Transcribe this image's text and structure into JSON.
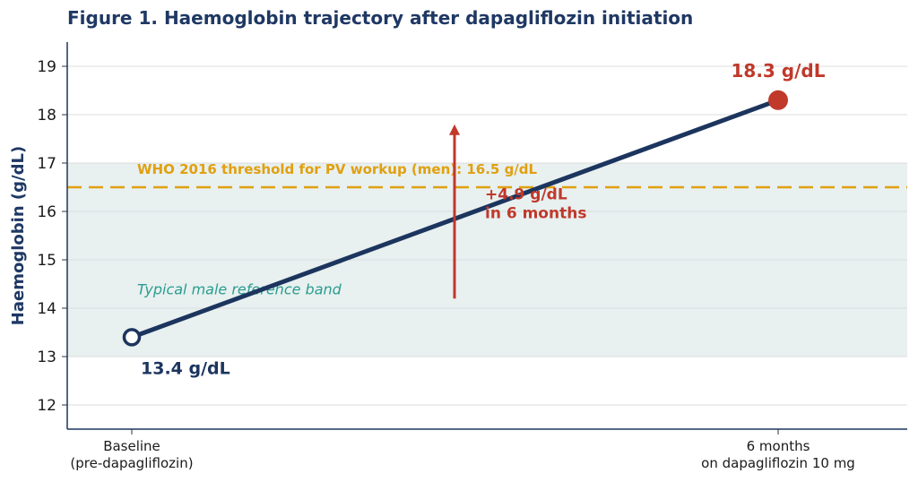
{
  "chart_data": {
    "type": "line",
    "title": "Figure 1.  Haemoglobin trajectory after dapagliflozin initiation",
    "ylabel": "Haemoglobin (g/dL)",
    "xlabel": "",
    "categories": [
      [
        "Baseline",
        "(pre-dapagliflozin)"
      ],
      [
        "6 months",
        "on dapagliflozin 10 mg"
      ]
    ],
    "values": [
      13.4,
      18.3
    ],
    "ylim": [
      11.5,
      19.5
    ],
    "yticks": [
      12,
      13,
      14,
      15,
      16,
      17,
      18,
      19
    ],
    "grid": true,
    "point_labels": [
      "13.4 g/dL",
      "18.3 g/dL"
    ],
    "threshold": {
      "value": 16.5,
      "label": "WHO 2016 threshold for PV workup (men): 16.5 g/dL"
    },
    "reference_band": {
      "from": 13,
      "to": 17,
      "label": "Typical male reference band"
    },
    "change_annotation": {
      "from": 14.2,
      "to": 17.8,
      "lines": [
        "+4.9 g/dL",
        "in 6 months"
      ]
    },
    "colors": {
      "title": "#1f3864",
      "line": "#1c355e",
      "baseline_marker": "#1c355e",
      "followup_marker": "#c0392b",
      "threshold": "#e0a010",
      "band": "#e8f0f0",
      "band_label": "#2a9d8f",
      "arrow": "#c0392b",
      "grid": "#dcdcdc",
      "axis": "#1c355e"
    }
  }
}
